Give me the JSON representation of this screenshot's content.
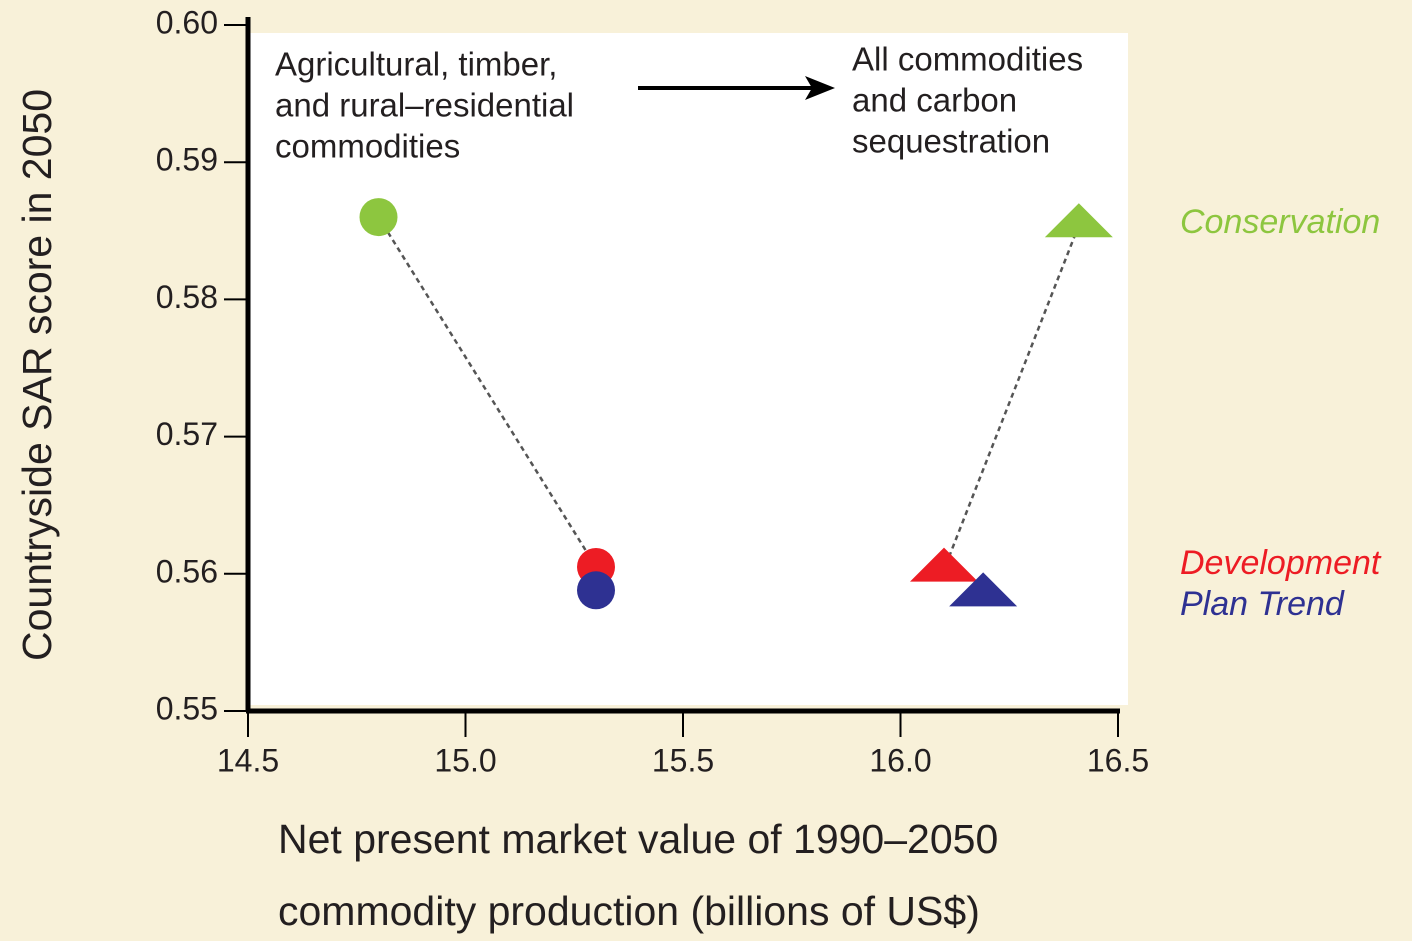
{
  "chart_data": {
    "type": "scatter",
    "ylabel": "Countryside SAR score in 2050",
    "xlabel": [
      "Net present market value of 1990–2050",
      "commodity production (billions of US$)"
    ],
    "annotations": [
      [
        "Agricultural, timber,",
        "and rural–residential",
        "commodities"
      ],
      [
        "All commodities",
        "and carbon",
        "sequestration"
      ]
    ],
    "markers": [
      "circle",
      "triangle"
    ],
    "series": [
      {
        "name": "Conservation",
        "color": "#8dc63f",
        "x": [
          14.8,
          16.41
        ],
        "values": [
          0.586,
          0.5854
        ]
      },
      {
        "name": "Development",
        "color": "#ed1c24",
        "x": [
          15.3,
          16.1
        ],
        "values": [
          0.5605,
          0.5603
        ]
      },
      {
        "name": "Plan Trend",
        "color": "#2e3192",
        "x": [
          15.3,
          16.19
        ],
        "values": [
          0.5588,
          0.5585
        ]
      }
    ],
    "xlim": [
      14.5,
      16.5
    ],
    "xticks": [
      14.5,
      {
        "value": 15,
        "label": "15.0"
      },
      15.5,
      {
        "value": 16,
        "label": "16.0"
      },
      16.5
    ],
    "ylim": [
      0.55,
      0.6
    ],
    "yticks": [
      0.55,
      0.56,
      0.57,
      0.58,
      0.59,
      {
        "value": 0.6,
        "label": "0.60"
      }
    ]
  }
}
